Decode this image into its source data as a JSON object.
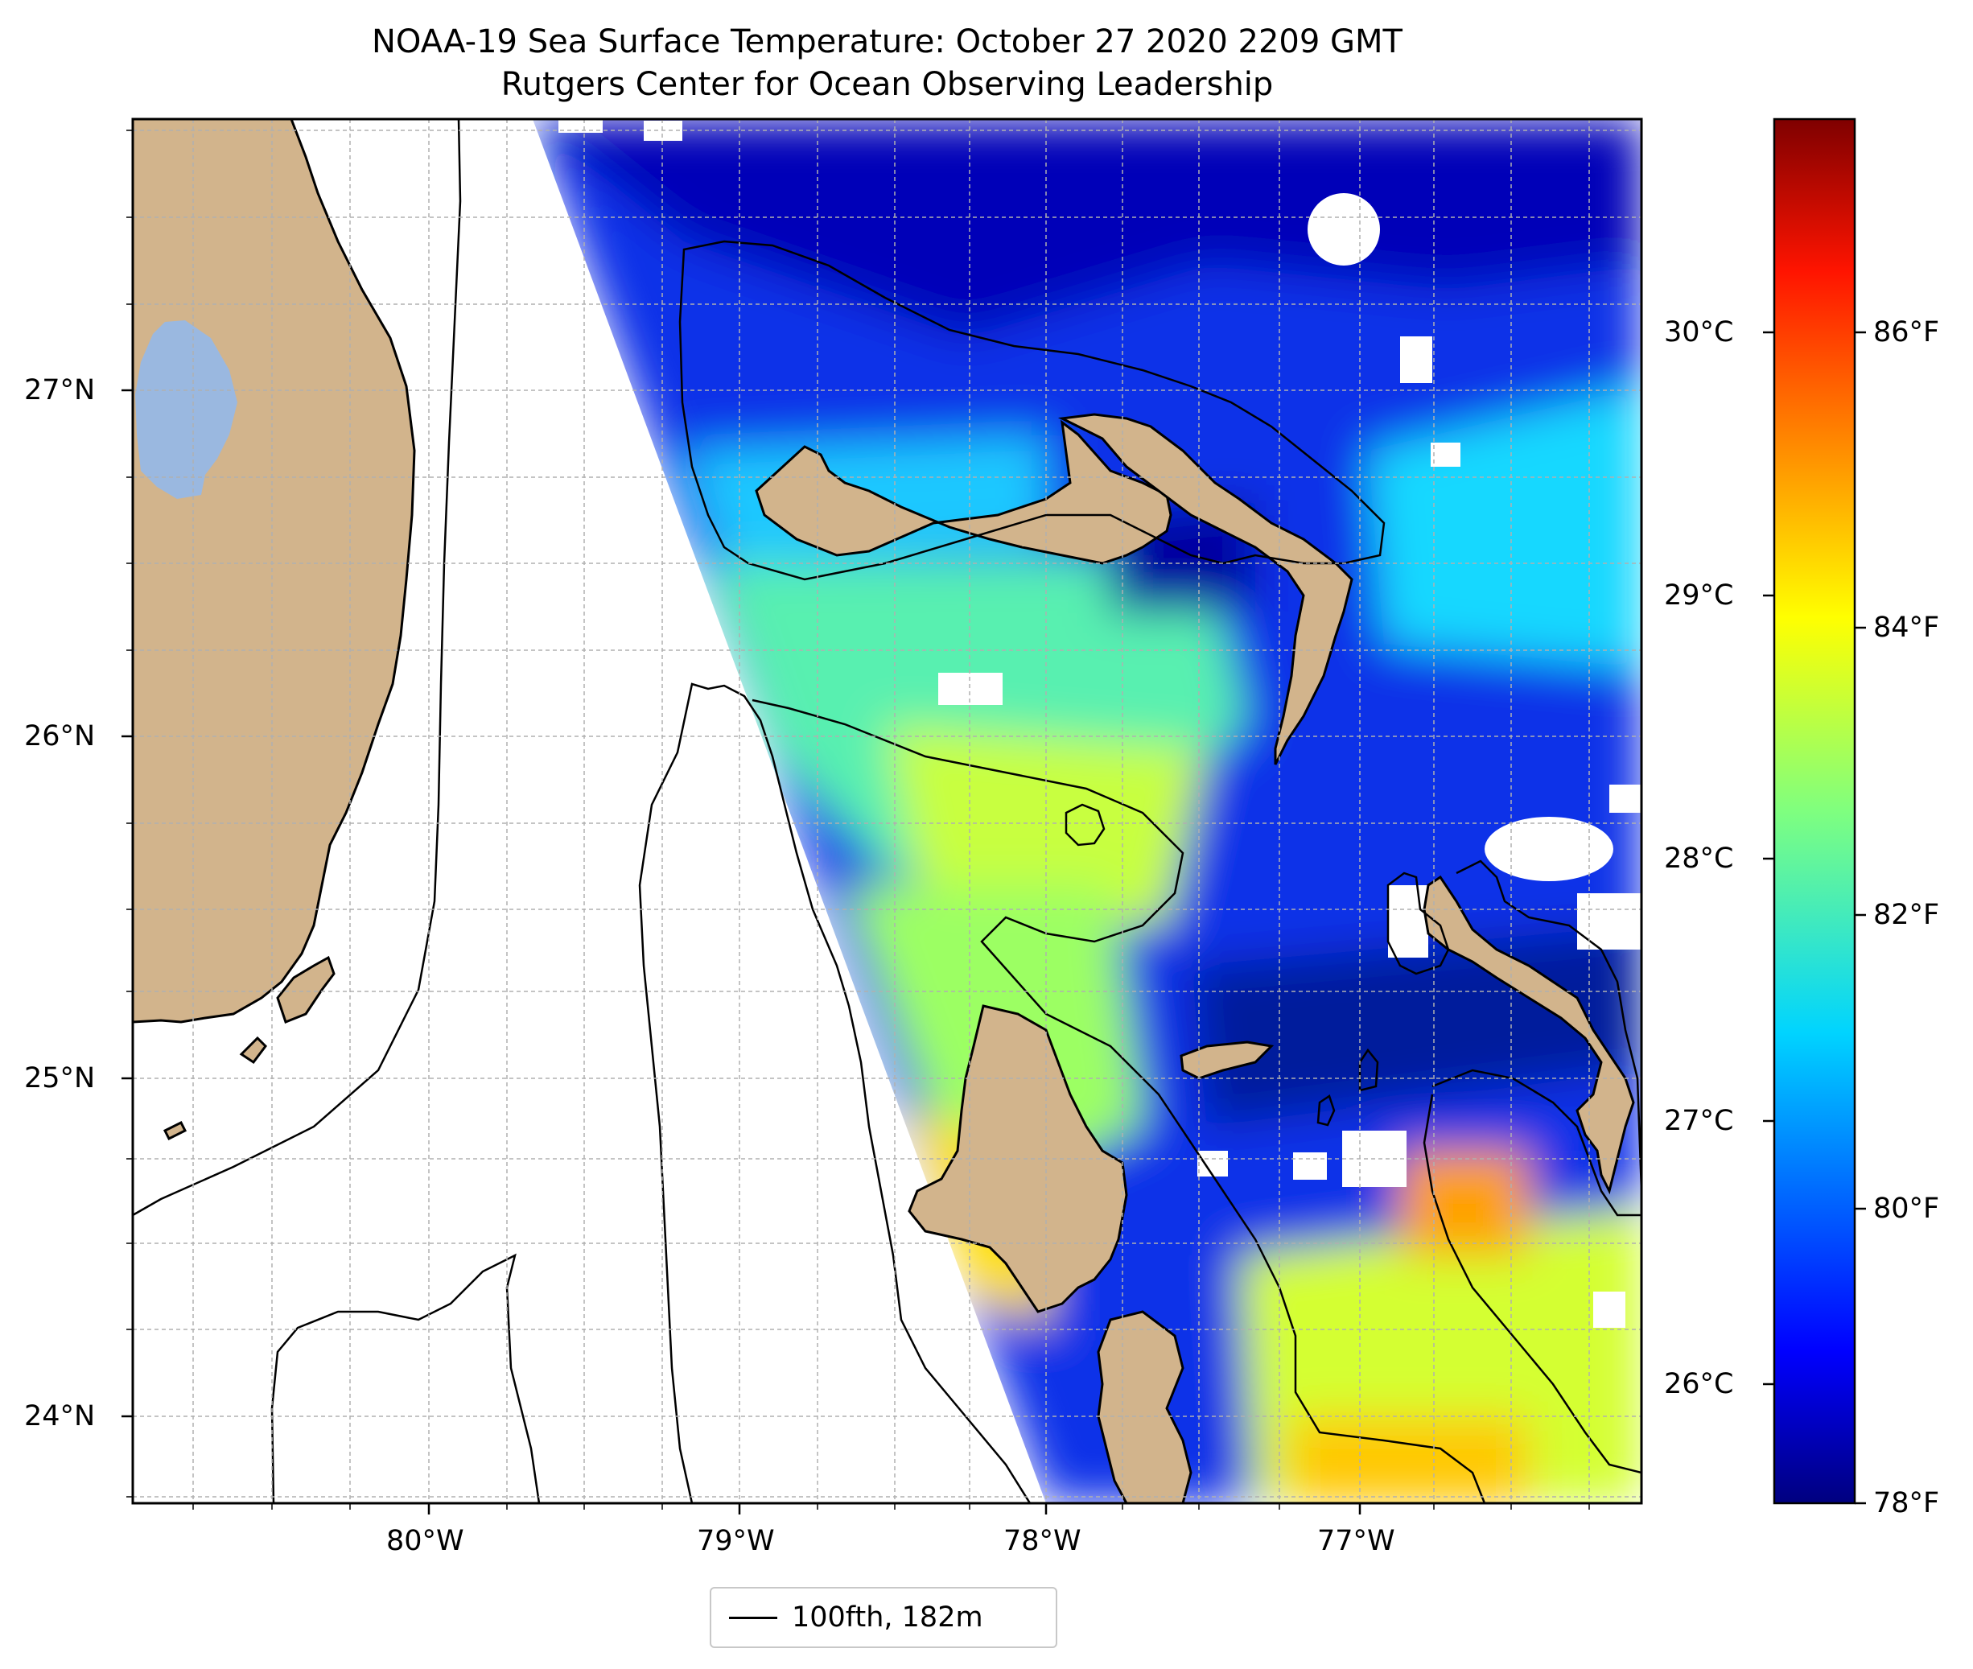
{
  "title": "NOAA-19 Sea Surface Temperature: October 27 2020 2209 GMT",
  "subtitle": "Rutgers Center for Ocean Observing Leadership",
  "lon_ticks": [
    "80°W",
    "79°W",
    "78°W",
    "77°W"
  ],
  "lat_ticks": [
    "27°N",
    "26°N",
    "25°N",
    "24°N"
  ],
  "colorbar": {
    "celsius_ticks": [
      "30°C",
      "29°C",
      "28°C",
      "27°C",
      "26°C"
    ],
    "fahrenheit_ticks": [
      "86°F",
      "84°F",
      "82°F",
      "80°F",
      "78°F"
    ],
    "range_f": [
      78,
      88
    ],
    "colormap": "jet",
    "colors": [
      "#00007f",
      "#0000ff",
      "#007fff",
      "#00ffff",
      "#7fff7f",
      "#ffff00",
      "#ff7f00",
      "#ff0000",
      "#7f0000"
    ]
  },
  "legend": {
    "label": "100fth, 182m",
    "line_color": "#000000"
  },
  "colors": {
    "land": "#d2b48c",
    "lake": "#9ab8e0",
    "no_data": "#ffffff",
    "gridline": "#b0b0b0"
  },
  "map_extent": {
    "lon": [
      -80.95,
      -76.1
    ],
    "lat": [
      23.75,
      27.8
    ]
  }
}
